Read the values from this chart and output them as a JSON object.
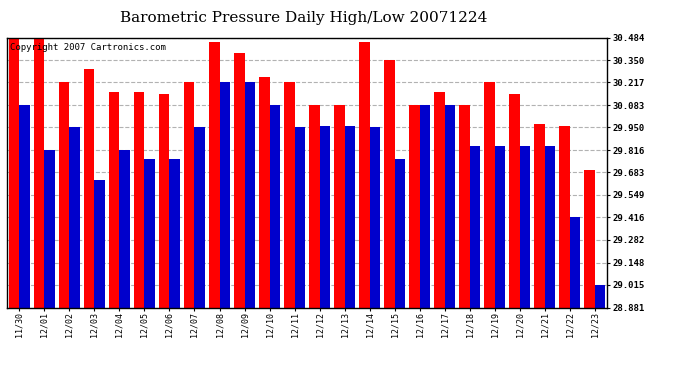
{
  "title": "Barometric Pressure Daily High/Low 20071224",
  "copyright": "Copyright 2007 Cartronics.com",
  "categories": [
    "11/30",
    "12/01",
    "12/02",
    "12/03",
    "12/04",
    "12/05",
    "12/06",
    "12/07",
    "12/08",
    "12/09",
    "12/10",
    "12/11",
    "12/12",
    "12/13",
    "12/14",
    "12/15",
    "12/16",
    "12/17",
    "12/18",
    "12/19",
    "12/20",
    "12/21",
    "12/22",
    "12/23"
  ],
  "highs": [
    30.484,
    30.484,
    30.217,
    30.295,
    30.16,
    30.16,
    30.15,
    30.217,
    30.46,
    30.39,
    30.25,
    30.217,
    30.083,
    30.083,
    30.46,
    30.35,
    30.083,
    30.16,
    30.083,
    30.217,
    30.15,
    29.97,
    29.96,
    29.7
  ],
  "lows": [
    30.083,
    29.816,
    29.95,
    29.64,
    29.816,
    29.76,
    29.76,
    29.95,
    30.217,
    30.217,
    30.083,
    29.95,
    29.96,
    29.96,
    29.95,
    29.76,
    30.083,
    30.083,
    29.84,
    29.84,
    29.84,
    29.84,
    29.416,
    29.015
  ],
  "bar_color_high": "#FF0000",
  "bar_color_low": "#0000CC",
  "background_color": "#FFFFFF",
  "plot_background": "#FFFFFF",
  "grid_color": "#AAAAAA",
  "yticks": [
    28.881,
    29.015,
    29.148,
    29.282,
    29.416,
    29.549,
    29.683,
    29.816,
    29.95,
    30.083,
    30.217,
    30.35,
    30.484
  ],
  "ymin": 28.881,
  "ymax": 30.484,
  "title_fontsize": 11,
  "copyright_fontsize": 6.5
}
